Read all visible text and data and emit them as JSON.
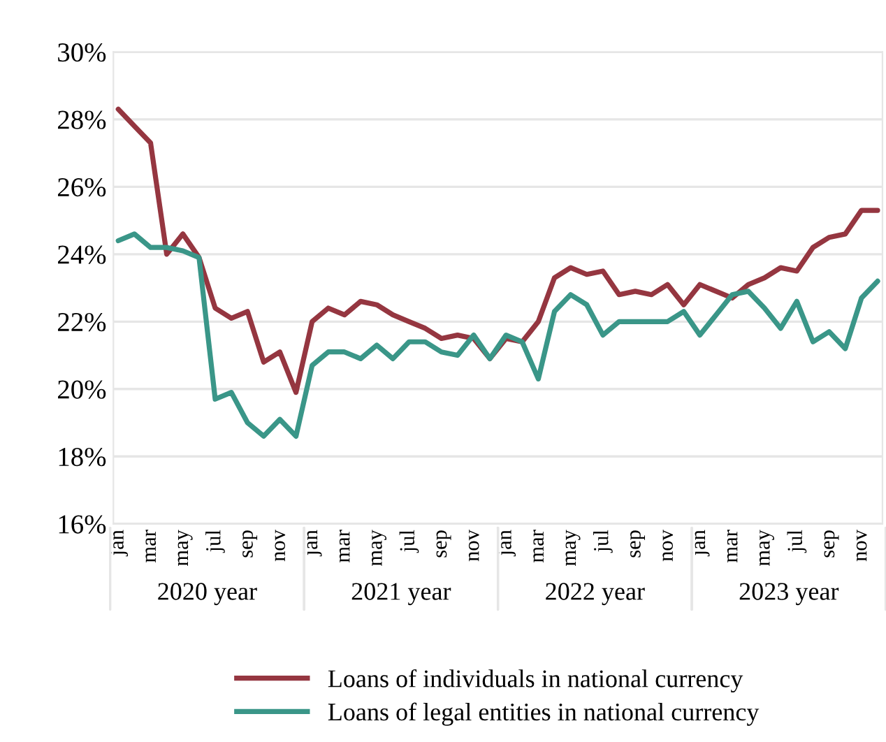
{
  "chart_data": {
    "type": "line",
    "categories": [
      "jan",
      null,
      "mar",
      null,
      "may",
      null,
      "jul",
      null,
      "sep",
      null,
      "nov",
      null,
      "jan",
      null,
      "mar",
      null,
      "may",
      null,
      "jul",
      null,
      "sep",
      null,
      "nov",
      null,
      "jan",
      null,
      "mar",
      null,
      "may",
      null,
      "jul",
      null,
      "sep",
      null,
      "nov",
      null,
      "jan",
      null,
      "mar",
      null,
      "may",
      null,
      "jul",
      null,
      "sep",
      null,
      "nov",
      null
    ],
    "annotations": [
      "2020 year",
      "2021 year",
      "2022 year",
      "2023 year"
    ],
    "series": [
      {
        "name": "Loans of individuals in national currency",
        "color": "#953640",
        "values": [
          28.3,
          27.8,
          27.3,
          24.0,
          24.6,
          23.9,
          22.4,
          22.1,
          22.3,
          20.8,
          21.1,
          19.9,
          22.0,
          22.4,
          22.2,
          22.6,
          22.5,
          22.2,
          22.0,
          21.8,
          21.5,
          21.6,
          21.5,
          20.9,
          21.5,
          21.4,
          22.0,
          23.3,
          23.6,
          23.4,
          23.5,
          22.8,
          22.9,
          22.8,
          23.1,
          22.5,
          23.1,
          22.9,
          22.7,
          23.1,
          23.3,
          23.6,
          23.5,
          24.2,
          24.5,
          24.6,
          25.3,
          25.3
        ]
      },
      {
        "name": "Loans of legal entities in national currency",
        "color": "#3a9688",
        "values": [
          24.4,
          24.6,
          24.2,
          24.2,
          24.1,
          23.9,
          19.7,
          19.9,
          19.0,
          18.6,
          19.1,
          18.6,
          20.7,
          21.1,
          21.1,
          20.9,
          21.3,
          20.9,
          21.4,
          21.4,
          21.1,
          21.0,
          21.6,
          20.9,
          21.6,
          21.4,
          20.3,
          22.3,
          22.8,
          22.5,
          21.6,
          22.0,
          22.0,
          22.0,
          22.0,
          22.3,
          21.6,
          22.2,
          22.8,
          22.9,
          22.4,
          21.8,
          22.6,
          21.4,
          21.7,
          21.2,
          22.7,
          23.2
        ]
      }
    ],
    "ylim": [
      16,
      30
    ],
    "yticks": [
      {
        "value": 16,
        "label": "16%"
      },
      {
        "value": 18,
        "label": "18%"
      },
      {
        "value": 20,
        "label": "20%"
      },
      {
        "value": 22,
        "label": "22%"
      },
      {
        "value": 24,
        "label": "24%"
      },
      {
        "value": 26,
        "label": "26%"
      },
      {
        "value": 28,
        "label": "28%"
      },
      {
        "value": 30,
        "label": "30%"
      }
    ],
    "grid": "y",
    "legend": "bottom",
    "line_style": "solid",
    "marker": "none"
  }
}
